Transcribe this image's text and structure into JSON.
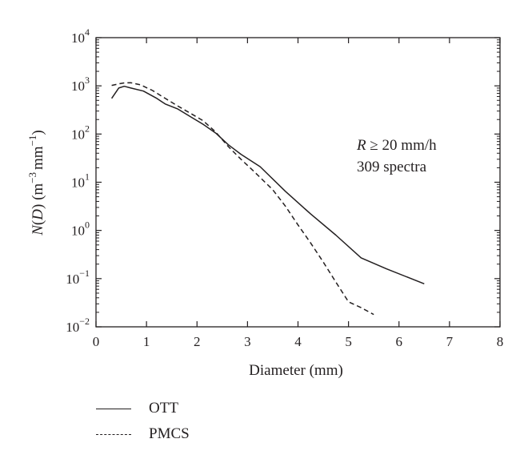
{
  "chart_data": {
    "type": "line",
    "yscale": "log",
    "xlabel": "Diameter (mm)",
    "ylabel": {
      "n": "N",
      "paren_open": "(",
      "d": "D",
      "paren_close": ")",
      "unit_open": " (m",
      "exp1": "−3",
      "mid": "mm",
      "exp2": "−1",
      "unit_close": ")"
    },
    "xlim": [
      0,
      8
    ],
    "ylim": [
      0.01,
      10000
    ],
    "xticks": [
      "0",
      "1",
      "2",
      "3",
      "4",
      "5",
      "6",
      "7",
      "8"
    ],
    "yticks": [
      {
        "base": "10",
        "exp": "−2"
      },
      {
        "base": "10",
        "exp": "−1"
      },
      {
        "base": "10",
        "exp": "0"
      },
      {
        "base": "10",
        "exp": "1"
      },
      {
        "base": "10",
        "exp": "2"
      },
      {
        "base": "10",
        "exp": "3"
      },
      {
        "base": "10",
        "exp": "4"
      }
    ],
    "annotation": {
      "r": "R",
      "cond": " ≥ 20 mm/h",
      "line2": "309 spectra"
    },
    "grid": false,
    "legend_position": "below-left",
    "series": [
      {
        "name": "OTT",
        "style": "solid",
        "x": [
          0.31,
          0.45,
          0.56,
          0.69,
          0.94,
          1.19,
          1.37,
          1.62,
          1.87,
          2.12,
          2.37,
          2.62,
          2.87,
          3.25,
          3.75,
          4.25,
          4.75,
          5.25,
          5.75,
          6.5
        ],
        "y": [
          550,
          900,
          980,
          900,
          780,
          560,
          420,
          330,
          230,
          160,
          105,
          60,
          38,
          21,
          6.5,
          2.2,
          0.8,
          0.27,
          0.16,
          0.078
        ]
      },
      {
        "name": "PMCS",
        "style": "dashed",
        "x": [
          0.31,
          0.45,
          0.56,
          0.69,
          0.88,
          1.12,
          1.37,
          1.62,
          1.87,
          2.12,
          2.37,
          2.62,
          2.87,
          3.12,
          3.5,
          3.75,
          4.0,
          4.25,
          4.5,
          4.75,
          5.0,
          5.25,
          5.5
        ],
        "y": [
          1020,
          1100,
          1150,
          1160,
          1050,
          800,
          550,
          380,
          270,
          190,
          110,
          55,
          30,
          17,
          7.0,
          3.2,
          1.3,
          0.55,
          0.22,
          0.085,
          0.033,
          0.025,
          0.018
        ]
      }
    ]
  },
  "colors": {
    "line": "#231f20",
    "axis": "#231f20",
    "background": "#ffffff"
  }
}
